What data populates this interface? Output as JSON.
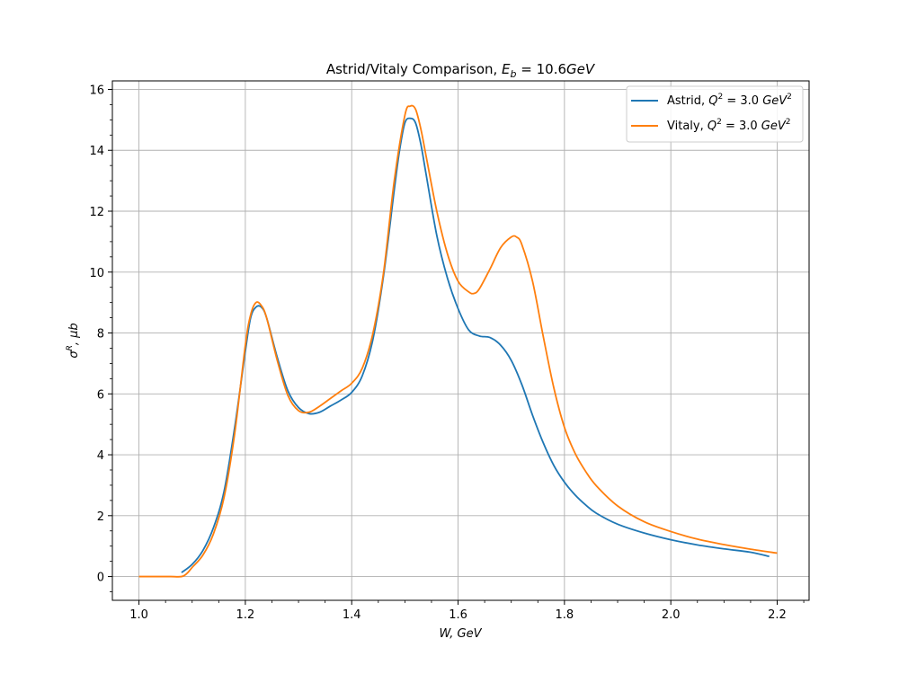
{
  "chart_data": {
    "type": "line",
    "title": "Astrid/Vitaly Comparison, E_b = 10.6GeV",
    "title_parts": {
      "prefix": "Astrid/Vitaly Comparison, ",
      "var": "E",
      "sub": "b",
      "suffix": " = 10.6",
      "unit": "GeV"
    },
    "xlabel": "W, GeV",
    "ylabel": "σ^R, μb",
    "xlim": [
      0.95,
      2.26
    ],
    "ylim": [
      -0.78,
      16.28
    ],
    "xticks": [
      1.0,
      1.2,
      1.4,
      1.6,
      1.8,
      2.0,
      2.2
    ],
    "xtick_labels": [
      "1.0",
      "1.2",
      "1.4",
      "1.6",
      "1.8",
      "2.0",
      "2.2"
    ],
    "yticks": [
      0,
      2,
      4,
      6,
      8,
      10,
      12,
      14,
      16
    ],
    "ytick_labels": [
      "0",
      "2",
      "4",
      "6",
      "8",
      "10",
      "12",
      "14",
      "16"
    ],
    "grid": true,
    "legend_position": "top-right",
    "series": [
      {
        "name": "Astrid, Q^2 = 3.0 GeV^2",
        "legend": {
          "prefix": "Astrid, ",
          "q": "Q",
          "q_sup": "2",
          "eq": " = 3.0 ",
          "unit": "GeV",
          "unit_sup": "2"
        },
        "color": "#1f77b4",
        "x": [
          1.08,
          1.1,
          1.12,
          1.14,
          1.16,
          1.18,
          1.2,
          1.21,
          1.22,
          1.23,
          1.24,
          1.26,
          1.28,
          1.3,
          1.32,
          1.34,
          1.36,
          1.38,
          1.4,
          1.42,
          1.44,
          1.46,
          1.48,
          1.49,
          1.5,
          1.51,
          1.52,
          1.53,
          1.54,
          1.56,
          1.58,
          1.6,
          1.62,
          1.64,
          1.66,
          1.68,
          1.7,
          1.72,
          1.74,
          1.76,
          1.78,
          1.8,
          1.82,
          1.84,
          1.86,
          1.9,
          1.95,
          2.0,
          2.05,
          2.1,
          2.15,
          2.185
        ],
        "y": [
          0.13,
          0.4,
          0.85,
          1.6,
          2.8,
          4.9,
          7.4,
          8.5,
          8.85,
          8.85,
          8.5,
          7.2,
          6.1,
          5.55,
          5.35,
          5.4,
          5.6,
          5.8,
          6.05,
          6.6,
          7.8,
          9.9,
          12.7,
          14.0,
          14.9,
          15.05,
          14.9,
          14.2,
          13.2,
          11.2,
          9.8,
          8.8,
          8.1,
          7.9,
          7.85,
          7.6,
          7.1,
          6.3,
          5.3,
          4.4,
          3.65,
          3.1,
          2.68,
          2.35,
          2.08,
          1.72,
          1.43,
          1.21,
          1.04,
          0.91,
          0.8,
          0.66
        ]
      },
      {
        "name": "Vitaly, Q^2 = 3.0 GeV^2",
        "legend": {
          "prefix": "Vitaly, ",
          "q": "Q",
          "q_sup": "2",
          "eq": " = 3.0 ",
          "unit": "GeV",
          "unit_sup": "2"
        },
        "color": "#ff7f0e",
        "x": [
          1.0,
          1.02,
          1.04,
          1.06,
          1.08,
          1.09,
          1.1,
          1.12,
          1.14,
          1.16,
          1.18,
          1.2,
          1.21,
          1.22,
          1.23,
          1.24,
          1.26,
          1.28,
          1.3,
          1.32,
          1.34,
          1.36,
          1.38,
          1.4,
          1.42,
          1.44,
          1.46,
          1.48,
          1.5,
          1.51,
          1.52,
          1.53,
          1.54,
          1.56,
          1.58,
          1.6,
          1.62,
          1.63,
          1.64,
          1.66,
          1.68,
          1.7,
          1.71,
          1.72,
          1.74,
          1.76,
          1.78,
          1.8,
          1.82,
          1.84,
          1.86,
          1.9,
          1.95,
          2.0,
          2.05,
          2.1,
          2.15,
          2.2
        ],
        "y": [
          0,
          0,
          0,
          0,
          0,
          0.1,
          0.3,
          0.7,
          1.4,
          2.6,
          4.7,
          7.6,
          8.6,
          9.0,
          8.9,
          8.5,
          7.1,
          5.95,
          5.45,
          5.4,
          5.6,
          5.85,
          6.1,
          6.35,
          6.85,
          8.0,
          10.0,
          13.0,
          15.15,
          15.45,
          15.35,
          14.7,
          13.8,
          12.0,
          10.6,
          9.7,
          9.35,
          9.3,
          9.45,
          10.1,
          10.8,
          11.15,
          11.15,
          10.9,
          9.7,
          7.9,
          6.2,
          4.9,
          4.05,
          3.45,
          2.98,
          2.32,
          1.8,
          1.48,
          1.23,
          1.05,
          0.9,
          0.77
        ]
      }
    ]
  }
}
